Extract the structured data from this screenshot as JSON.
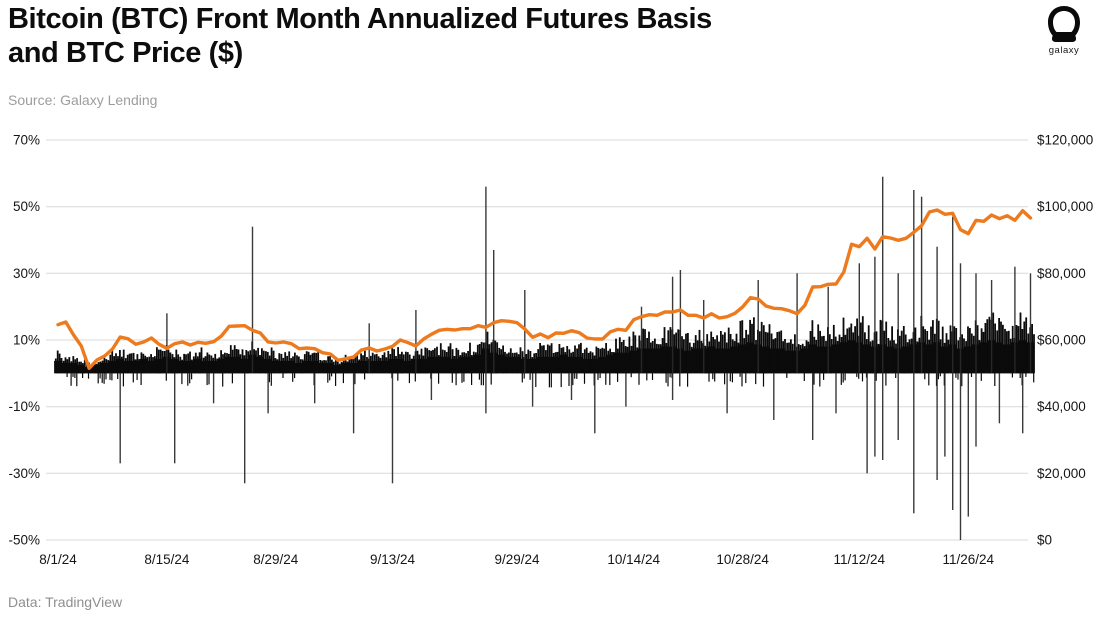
{
  "header": {
    "title_line1": "Bitcoin (BTC) Front Month Annualized Futures Basis",
    "title_line2": "and BTC Price ($)",
    "source": "Source: Galaxy Lending",
    "logo_text": "galaxy"
  },
  "footer": {
    "credit": "Data: TradingView"
  },
  "colors": {
    "bars": "#0b0b0b",
    "spikes": "#2a2a2a",
    "price_line": "#ee7a1e",
    "grid": "#d9d9d9",
    "title": "#0d0d0d",
    "muted_text": "#9d9d9d"
  },
  "chart_data": {
    "type": "combo",
    "title": "Bitcoin (BTC) Front Month Annualized Futures Basis and BTC Price ($)",
    "grid": "horizontal",
    "legend": "none",
    "x": {
      "tick_labels": [
        "8/1/24",
        "8/15/24",
        "8/29/24",
        "9/13/24",
        "9/29/24",
        "10/14/24",
        "10/28/24",
        "11/12/24",
        "11/26/24"
      ],
      "tick_days": [
        0,
        14,
        28,
        43,
        59,
        74,
        88,
        103,
        117
      ],
      "start_date": "8/1/24",
      "end_date": "12/4/24",
      "total_days": 126
    },
    "left_axis": {
      "ticks": [
        "70%",
        "50%",
        "30%",
        "10%",
        "-10%",
        "-30%",
        "-50%"
      ],
      "tick_values": [
        70,
        50,
        30,
        10,
        -10,
        -30,
        -50
      ],
      "range": [
        -50,
        70
      ],
      "unit": "%"
    },
    "right_axis": {
      "ticks": [
        "$120,000",
        "$100,000",
        "$80,000",
        "$60,000",
        "$40,000",
        "$20,000",
        "$0"
      ],
      "tick_values": [
        120000,
        100000,
        80000,
        60000,
        40000,
        20000,
        0
      ],
      "range": [
        0,
        120000
      ],
      "unit": "USD"
    },
    "series": [
      {
        "name": "Front Month Annualized Futures Basis",
        "type": "bar",
        "axis": "left",
        "unit": "%",
        "daily_top_pct": [
          6,
          5,
          5,
          4,
          3,
          4,
          5,
          6,
          7,
          6,
          6,
          7,
          6,
          7,
          8,
          7,
          6,
          6,
          7,
          6,
          6,
          7,
          8,
          8,
          7,
          9,
          8,
          7,
          6,
          6,
          6,
          5,
          6,
          6,
          5,
          5,
          4,
          5,
          5,
          6,
          6,
          6,
          6,
          7,
          7,
          6,
          7,
          7,
          8,
          8,
          8,
          7,
          8,
          8,
          9,
          12,
          10,
          9,
          8,
          8,
          7,
          7,
          8,
          8,
          8,
          9,
          8,
          8,
          7,
          7,
          8,
          9,
          10,
          10,
          11,
          12,
          12,
          12,
          13,
          13,
          12,
          11,
          12,
          12,
          13,
          12,
          12,
          13,
          14,
          15,
          14,
          13,
          12,
          12,
          11,
          11,
          12,
          14,
          13,
          13,
          14,
          15,
          16,
          15,
          14,
          13,
          14,
          13,
          12,
          13,
          14,
          15,
          14,
          15,
          13,
          14,
          12,
          13,
          14,
          15,
          16,
          15,
          14,
          15,
          16,
          15
        ],
        "spikes_day_pct": [
          [
            14,
            18
          ],
          [
            25,
            44
          ],
          [
            40,
            15
          ],
          [
            46,
            19
          ],
          [
            55,
            56
          ],
          [
            56,
            37
          ],
          [
            60,
            25
          ],
          [
            75,
            20
          ],
          [
            79,
            29
          ],
          [
            80,
            31
          ],
          [
            83,
            22
          ],
          [
            90,
            28
          ],
          [
            95,
            30
          ],
          [
            99,
            26
          ],
          [
            103,
            33
          ],
          [
            105,
            35
          ],
          [
            106,
            59
          ],
          [
            108,
            30
          ],
          [
            110,
            55
          ],
          [
            111,
            53
          ],
          [
            113,
            38
          ],
          [
            115,
            47
          ],
          [
            116,
            33
          ],
          [
            118,
            30
          ],
          [
            120,
            28
          ],
          [
            123,
            32
          ],
          [
            125,
            30
          ],
          [
            8,
            -27
          ],
          [
            15,
            -27
          ],
          [
            20,
            -9
          ],
          [
            24,
            -33
          ],
          [
            27,
            -12
          ],
          [
            33,
            -9
          ],
          [
            38,
            -18
          ],
          [
            43,
            -33
          ],
          [
            48,
            -8
          ],
          [
            55,
            -12
          ],
          [
            61,
            -10
          ],
          [
            66,
            -8
          ],
          [
            69,
            -18
          ],
          [
            73,
            -10
          ],
          [
            79,
            -8
          ],
          [
            86,
            -12
          ],
          [
            92,
            -14
          ],
          [
            97,
            -20
          ],
          [
            100,
            -12
          ],
          [
            104,
            -30
          ],
          [
            105,
            -25
          ],
          [
            106,
            -26
          ],
          [
            108,
            -20
          ],
          [
            110,
            -42
          ],
          [
            113,
            -32
          ],
          [
            114,
            -25
          ],
          [
            115,
            -41
          ],
          [
            116,
            -50
          ],
          [
            117,
            -43
          ],
          [
            118,
            -22
          ],
          [
            121,
            -15
          ],
          [
            124,
            -18
          ]
        ]
      },
      {
        "name": "BTC Price",
        "type": "line",
        "axis": "right",
        "unit": "USD",
        "daily_price_usd_k": [
          64.6,
          65.4,
          61.5,
          58.2,
          51.5,
          54.0,
          55.2,
          57.3,
          60.9,
          60.4,
          58.7,
          59.4,
          60.6,
          58.7,
          57.5,
          58.9,
          59.4,
          58.5,
          59.3,
          59.0,
          59.5,
          61.2,
          64.1,
          64.2,
          64.3,
          62.9,
          62.1,
          59.4,
          59.1,
          59.4,
          58.9,
          57.4,
          57.6,
          57.4,
          56.2,
          55.8,
          53.9,
          54.4,
          54.9,
          57.0,
          57.6,
          56.7,
          57.3,
          58.1,
          60.0,
          59.2,
          58.2,
          60.3,
          61.7,
          62.9,
          63.2,
          63.0,
          63.4,
          63.4,
          64.3,
          63.8,
          65.2,
          65.8,
          65.6,
          65.2,
          63.3,
          60.8,
          61.8,
          60.7,
          62.1,
          62.0,
          62.8,
          62.2,
          60.6,
          60.3,
          60.3,
          62.5,
          63.2,
          62.9,
          66.1,
          67.0,
          67.6,
          67.4,
          68.4,
          68.4,
          69.0,
          67.4,
          67.4,
          66.6,
          67.9,
          66.6,
          67.0,
          68.0,
          69.9,
          72.7,
          72.3,
          70.2,
          69.5,
          69.4,
          68.8,
          67.9,
          70.4,
          75.9,
          76.0,
          76.7,
          76.8,
          80.4,
          88.7,
          88.0,
          90.5,
          87.3,
          91.0,
          90.6,
          89.9,
          90.5,
          92.3,
          94.3,
          98.4,
          99.0,
          97.7,
          98.0,
          93.1,
          91.9,
          95.9,
          95.6,
          97.5,
          96.4,
          97.3,
          95.9,
          98.8,
          96.6
        ]
      }
    ]
  }
}
